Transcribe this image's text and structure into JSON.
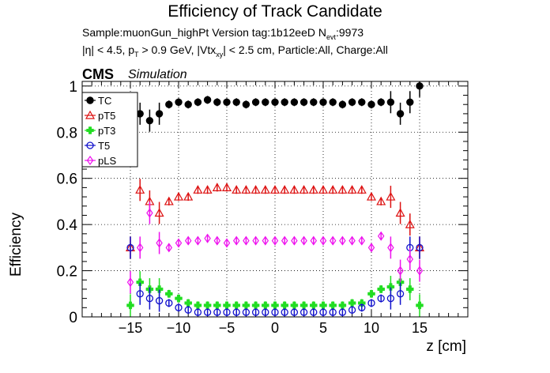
{
  "chart_data": {
    "type": "scatter",
    "title": "Efficiency of Track Candidate",
    "subtitle_lines": [
      "Sample:muonGun_highPt   Version tag:1b12eeD  N",
      "|η| < 4.5, p",
      "T",
      "> 0.9 GeV, |Vtx",
      "xy",
      "| < 2.5 cm, Particle:All, Charge:All",
      "evt",
      ":9973"
    ],
    "experiment_label": "CMS",
    "experiment_sublabel": "Simulation",
    "xlabel": "z [cm]",
    "ylabel": "Efficiency",
    "xlim": [
      -20,
      20
    ],
    "ylim": [
      0,
      1.02
    ],
    "xticks": [
      -15,
      -10,
      -5,
      0,
      5,
      10,
      15
    ],
    "xtick_labels": [
      "−15",
      "−10",
      "−5",
      "0",
      "5",
      "10",
      "15"
    ],
    "yticks": [
      0,
      0.2,
      0.4,
      0.6,
      0.8,
      1
    ],
    "ytick_labels": [
      "0",
      "0.2",
      "0.4",
      "0.6",
      "0.8",
      "1"
    ],
    "grid": true,
    "legend_position": "top-left",
    "series": [
      {
        "name": "TC",
        "color": "#000000",
        "marker": "filled-circle",
        "x": [
          -15,
          -14,
          -13,
          -12,
          -11,
          -10,
          -9,
          -8,
          -7,
          -6,
          -5,
          -4,
          -3,
          -2,
          -1,
          0,
          1,
          2,
          3,
          4,
          5,
          6,
          7,
          8,
          9,
          10,
          11,
          12,
          13,
          14,
          15
        ],
        "y": [
          0.85,
          0.88,
          0.85,
          0.88,
          0.92,
          0.93,
          0.92,
          0.93,
          0.94,
          0.93,
          0.93,
          0.93,
          0.92,
          0.93,
          0.93,
          0.93,
          0.93,
          0.93,
          0.93,
          0.93,
          0.93,
          0.93,
          0.92,
          0.93,
          0.93,
          0.92,
          0.93,
          0.93,
          0.88,
          0.93,
          1.0
        ]
      },
      {
        "name": "pT5",
        "color": "#dd1111",
        "marker": "open-triangle",
        "x": [
          -15,
          -14,
          -13,
          -12,
          -11,
          -10,
          -9,
          -8,
          -7,
          -6,
          -5,
          -4,
          -3,
          -2,
          -1,
          0,
          1,
          2,
          3,
          4,
          5,
          6,
          7,
          8,
          9,
          10,
          11,
          12,
          13,
          14,
          15
        ],
        "y": [
          0.3,
          0.55,
          0.5,
          0.45,
          0.5,
          0.52,
          0.52,
          0.55,
          0.55,
          0.56,
          0.56,
          0.55,
          0.55,
          0.55,
          0.55,
          0.55,
          0.55,
          0.55,
          0.55,
          0.55,
          0.55,
          0.55,
          0.55,
          0.55,
          0.55,
          0.52,
          0.5,
          0.52,
          0.45,
          0.4,
          0.3
        ]
      },
      {
        "name": "pT3",
        "color": "#22dd22",
        "marker": "filled-cross",
        "x": [
          -15,
          -14,
          -13,
          -12,
          -11,
          -10,
          -9,
          -8,
          -7,
          -6,
          -5,
          -4,
          -3,
          -2,
          -1,
          0,
          1,
          2,
          3,
          4,
          5,
          6,
          7,
          8,
          9,
          10,
          11,
          12,
          13,
          14,
          15
        ],
        "y": [
          0.05,
          0.15,
          0.12,
          0.12,
          0.1,
          0.08,
          0.06,
          0.05,
          0.05,
          0.05,
          0.05,
          0.05,
          0.05,
          0.05,
          0.05,
          0.05,
          0.05,
          0.05,
          0.05,
          0.05,
          0.05,
          0.05,
          0.05,
          0.06,
          0.06,
          0.1,
          0.12,
          0.13,
          0.15,
          0.12,
          0.05
        ]
      },
      {
        "name": "T5",
        "color": "#1111cc",
        "marker": "open-circle",
        "x": [
          -15,
          -14,
          -13,
          -12,
          -11,
          -10,
          -9,
          -8,
          -7,
          -6,
          -5,
          -4,
          -3,
          -2,
          -1,
          0,
          1,
          2,
          3,
          4,
          5,
          6,
          7,
          8,
          9,
          10,
          11,
          12,
          13,
          14,
          15
        ],
        "y": [
          0.3,
          0.1,
          0.08,
          0.07,
          0.06,
          0.04,
          0.03,
          0.02,
          0.02,
          0.02,
          0.02,
          0.02,
          0.02,
          0.02,
          0.02,
          0.02,
          0.02,
          0.02,
          0.02,
          0.02,
          0.02,
          0.02,
          0.02,
          0.03,
          0.04,
          0.06,
          0.08,
          0.08,
          0.1,
          0.3,
          0.3
        ]
      },
      {
        "name": "pLS",
        "color": "#ee11ee",
        "marker": "open-diamond",
        "x": [
          -15,
          -14,
          -13,
          -12,
          -11,
          -10,
          -9,
          -8,
          -7,
          -6,
          -5,
          -4,
          -3,
          -2,
          -1,
          0,
          1,
          2,
          3,
          4,
          5,
          6,
          7,
          8,
          9,
          10,
          11,
          12,
          13,
          14,
          15
        ],
        "y": [
          0.15,
          0.3,
          0.45,
          0.32,
          0.3,
          0.32,
          0.33,
          0.33,
          0.34,
          0.33,
          0.32,
          0.33,
          0.33,
          0.33,
          0.33,
          0.33,
          0.33,
          0.33,
          0.33,
          0.33,
          0.33,
          0.33,
          0.33,
          0.33,
          0.33,
          0.3,
          0.35,
          0.3,
          0.2,
          0.25,
          0.2
        ]
      }
    ]
  }
}
